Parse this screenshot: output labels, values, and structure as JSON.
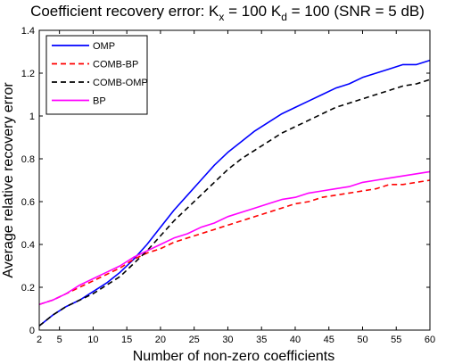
{
  "chart_data": {
    "type": "line",
    "title": {
      "main": "Coefficient recovery error: K",
      "sub1": "x",
      "mid": " = 100 K",
      "sub2": "d",
      "end": " = 100 (SNR = 5 dB)"
    },
    "xlabel": "Number of non-zero coefficients",
    "ylabel": "Average relative recovery error",
    "xlim": [
      2,
      60
    ],
    "ylim": [
      0,
      1.4
    ],
    "xticks": [
      2,
      5,
      10,
      15,
      20,
      25,
      30,
      35,
      40,
      45,
      50,
      55,
      60
    ],
    "yticks": [
      0,
      0.2,
      0.4,
      0.6,
      0.8,
      1,
      1.2,
      1.4
    ],
    "ytick_labels": [
      "0",
      "0.2",
      "0.4",
      "0.6",
      "0.8",
      "1",
      "1.2",
      "1.4"
    ],
    "grid": false,
    "legend_position": "top-left",
    "series": [
      {
        "name": "OMP",
        "color": "#0000ff",
        "dash": "solid",
        "x": [
          2,
          4,
          6,
          8,
          10,
          12,
          14,
          16,
          18,
          20,
          22,
          24,
          26,
          28,
          30,
          32,
          34,
          36,
          38,
          40,
          42,
          44,
          46,
          48,
          50,
          52,
          54,
          56,
          58,
          60
        ],
        "y": [
          0.02,
          0.07,
          0.11,
          0.14,
          0.18,
          0.22,
          0.27,
          0.33,
          0.4,
          0.48,
          0.56,
          0.63,
          0.7,
          0.77,
          0.83,
          0.88,
          0.93,
          0.97,
          1.01,
          1.04,
          1.07,
          1.1,
          1.13,
          1.15,
          1.18,
          1.2,
          1.22,
          1.24,
          1.24,
          1.26
        ]
      },
      {
        "name": "COMB-BP",
        "color": "#ff0000",
        "dash": "dashed",
        "x": [
          2,
          4,
          6,
          8,
          10,
          12,
          14,
          16,
          18,
          20,
          22,
          24,
          26,
          28,
          30,
          32,
          34,
          36,
          38,
          40,
          42,
          44,
          46,
          48,
          50,
          52,
          54,
          56,
          58,
          60
        ],
        "y": [
          0.12,
          0.14,
          0.17,
          0.2,
          0.23,
          0.26,
          0.29,
          0.33,
          0.36,
          0.38,
          0.41,
          0.43,
          0.45,
          0.47,
          0.49,
          0.51,
          0.53,
          0.55,
          0.57,
          0.59,
          0.6,
          0.62,
          0.63,
          0.64,
          0.65,
          0.66,
          0.68,
          0.68,
          0.69,
          0.7
        ]
      },
      {
        "name": "COMB-OMP",
        "color": "#000000",
        "dash": "dashed",
        "x": [
          2,
          4,
          6,
          8,
          10,
          12,
          14,
          16,
          18,
          20,
          22,
          24,
          26,
          28,
          30,
          32,
          34,
          36,
          38,
          40,
          42,
          44,
          46,
          48,
          50,
          52,
          54,
          56,
          58,
          60
        ],
        "y": [
          0.02,
          0.07,
          0.11,
          0.14,
          0.17,
          0.21,
          0.25,
          0.31,
          0.37,
          0.44,
          0.51,
          0.57,
          0.63,
          0.69,
          0.75,
          0.8,
          0.84,
          0.88,
          0.92,
          0.95,
          0.98,
          1.01,
          1.04,
          1.06,
          1.08,
          1.1,
          1.12,
          1.14,
          1.15,
          1.17
        ]
      },
      {
        "name": "BP",
        "color": "#ff00ff",
        "dash": "solid",
        "x": [
          2,
          4,
          6,
          8,
          10,
          12,
          14,
          16,
          18,
          20,
          22,
          24,
          26,
          28,
          30,
          32,
          34,
          36,
          38,
          40,
          42,
          44,
          46,
          48,
          50,
          52,
          54,
          56,
          58,
          60
        ],
        "y": [
          0.12,
          0.14,
          0.17,
          0.21,
          0.24,
          0.27,
          0.3,
          0.34,
          0.37,
          0.4,
          0.43,
          0.45,
          0.48,
          0.5,
          0.53,
          0.55,
          0.57,
          0.59,
          0.61,
          0.62,
          0.64,
          0.65,
          0.66,
          0.67,
          0.69,
          0.7,
          0.71,
          0.72,
          0.73,
          0.74
        ]
      }
    ]
  }
}
